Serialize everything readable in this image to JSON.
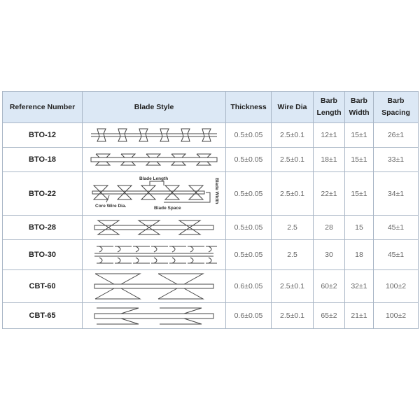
{
  "table": {
    "headers": [
      "Reference Number",
      "Blade Style",
      "Thickness",
      "Wire Dia",
      "Barb Length",
      "Barb Width",
      "Barb Spacing"
    ],
    "header_lines": {
      "barb_length": [
        "Barb",
        "Length"
      ],
      "barb_width": [
        "Barb",
        "Width"
      ],
      "barb_spacing": [
        "Barb",
        "Spacing"
      ]
    },
    "rows": [
      {
        "ref": "BTO-12",
        "thickness": "0.5±0.05",
        "wire_dia": "2.5±0.1",
        "barb_length": "12±1",
        "barb_width": "15±1",
        "barb_spacing": "26±1"
      },
      {
        "ref": "BTO-18",
        "thickness": "0.5±0.05",
        "wire_dia": "2.5±0.1",
        "barb_length": "18±1",
        "barb_width": "15±1",
        "barb_spacing": "33±1"
      },
      {
        "ref": "BTO-22",
        "thickness": "0.5±0.05",
        "wire_dia": "2.5±0.1",
        "barb_length": "22±1",
        "barb_width": "15±1",
        "barb_spacing": "34±1"
      },
      {
        "ref": "BTO-28",
        "thickness": "0.5±0.05",
        "wire_dia": "2.5",
        "barb_length": "28",
        "barb_width": "15",
        "barb_spacing": "45±1"
      },
      {
        "ref": "BTO-30",
        "thickness": "0.5±0.05",
        "wire_dia": "2.5",
        "barb_length": "30",
        "barb_width": "18",
        "barb_spacing": "45±1"
      },
      {
        "ref": "CBT-60",
        "thickness": "0.6±0.05",
        "wire_dia": "2.5±0.1",
        "barb_length": "60±2",
        "barb_width": "32±1",
        "barb_spacing": "100±2"
      },
      {
        "ref": "CBT-65",
        "thickness": "0.6±0.05",
        "wire_dia": "2.5±0.1",
        "barb_length": "65±2",
        "barb_width": "21±1",
        "barb_spacing": "100±2"
      }
    ],
    "diagram_labels": {
      "blade_length": "Blade Length",
      "core_wire_dia": "Core Wire Dia.",
      "blade_space": "Blade Space",
      "blade_width": "Blade Width"
    }
  },
  "colors": {
    "header_bg": "#dce8f5",
    "border": "#a9b6c6"
  }
}
